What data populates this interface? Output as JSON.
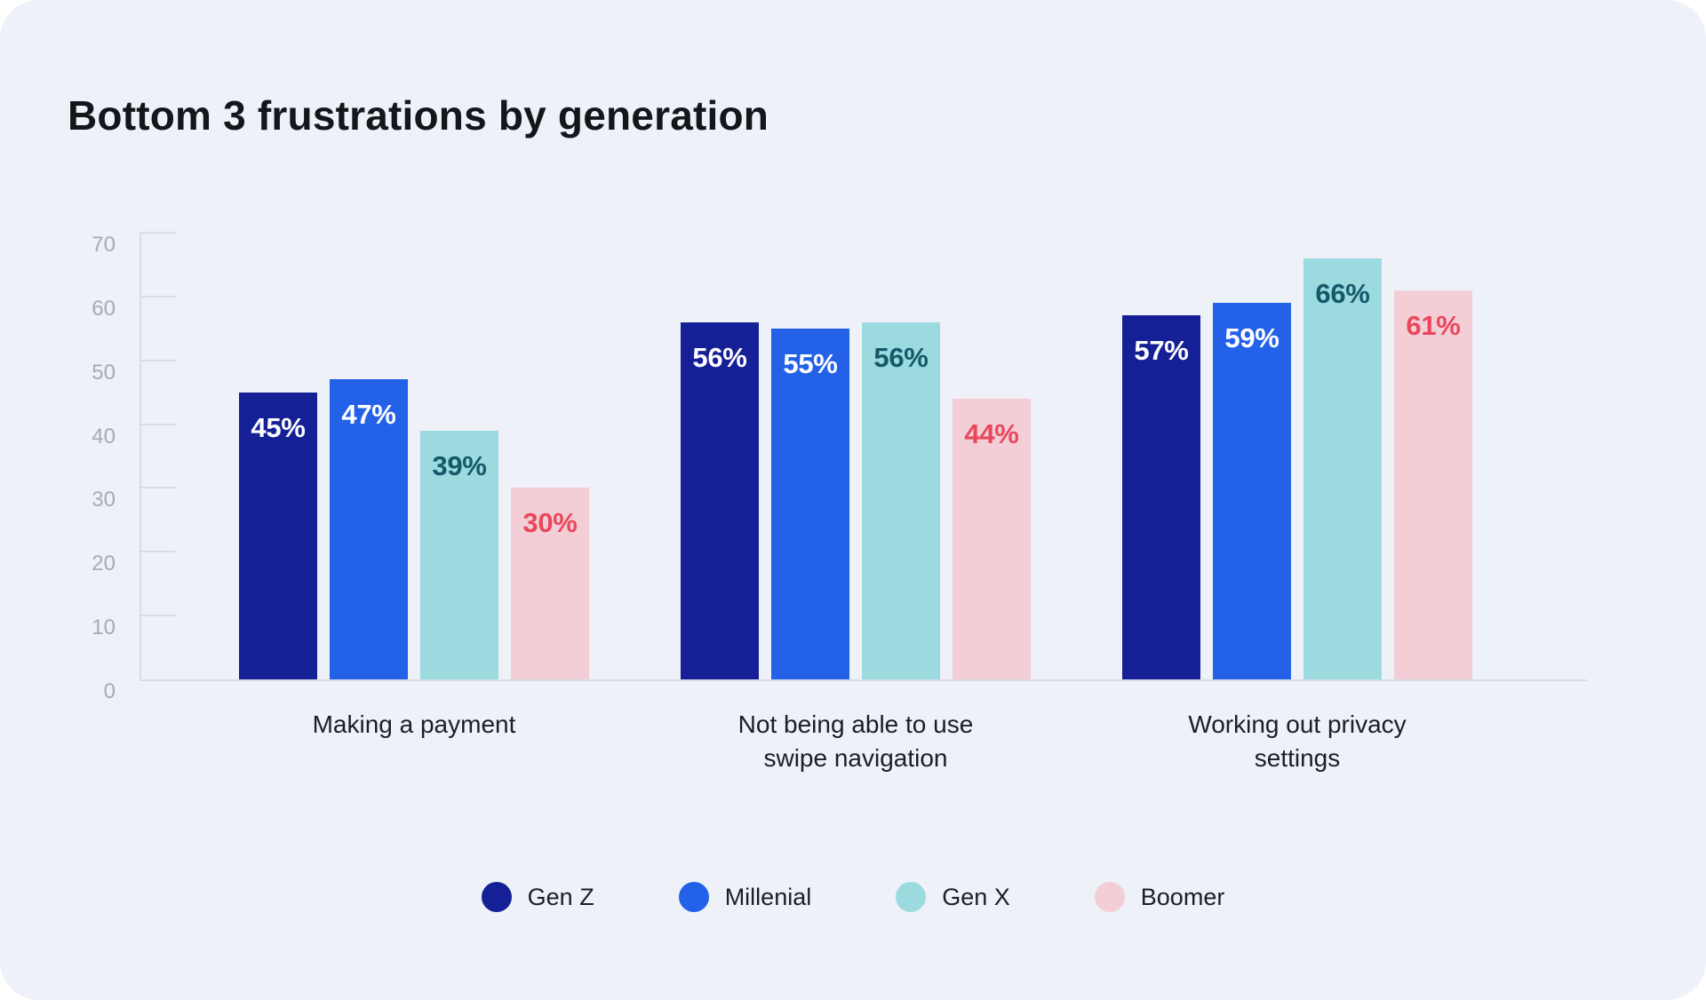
{
  "card": {
    "background": "#EEF1F7",
    "page_background": "#FFFFFF"
  },
  "title": "Bottom 3 frustrations by generation",
  "chart_data": {
    "type": "bar",
    "title": "Bottom 3 frustrations by generation",
    "categories": [
      "Making a payment",
      "Not being able to use\nswipe navigation",
      "Working out privacy\nsettings"
    ],
    "series": [
      {
        "name": "Gen Z",
        "color": "#162096",
        "label_color": "#FFFFFF",
        "values": [
          45,
          56,
          57
        ]
      },
      {
        "name": "Millenial",
        "color": "#2361E9",
        "label_color": "#FFFFFF",
        "values": [
          47,
          55,
          59
        ]
      },
      {
        "name": "Gen X",
        "color": "#9BDADF",
        "label_color": "#17596A",
        "values": [
          39,
          56,
          66
        ]
      },
      {
        "name": "Boomer",
        "color": "#F3CED6",
        "label_color": "#E9485C",
        "values": [
          30,
          44,
          61
        ]
      }
    ],
    "value_suffix": "%",
    "ylim": [
      0,
      70
    ],
    "yticks": [
      0,
      10,
      20,
      30,
      40,
      50,
      60,
      70
    ],
    "grid": "off",
    "legend_position": "bottom",
    "colors": {
      "axis": "#D9DDE3",
      "tick_label": "#A6AAB2",
      "category_label": "#1B1E24",
      "title": "#15161B"
    }
  }
}
